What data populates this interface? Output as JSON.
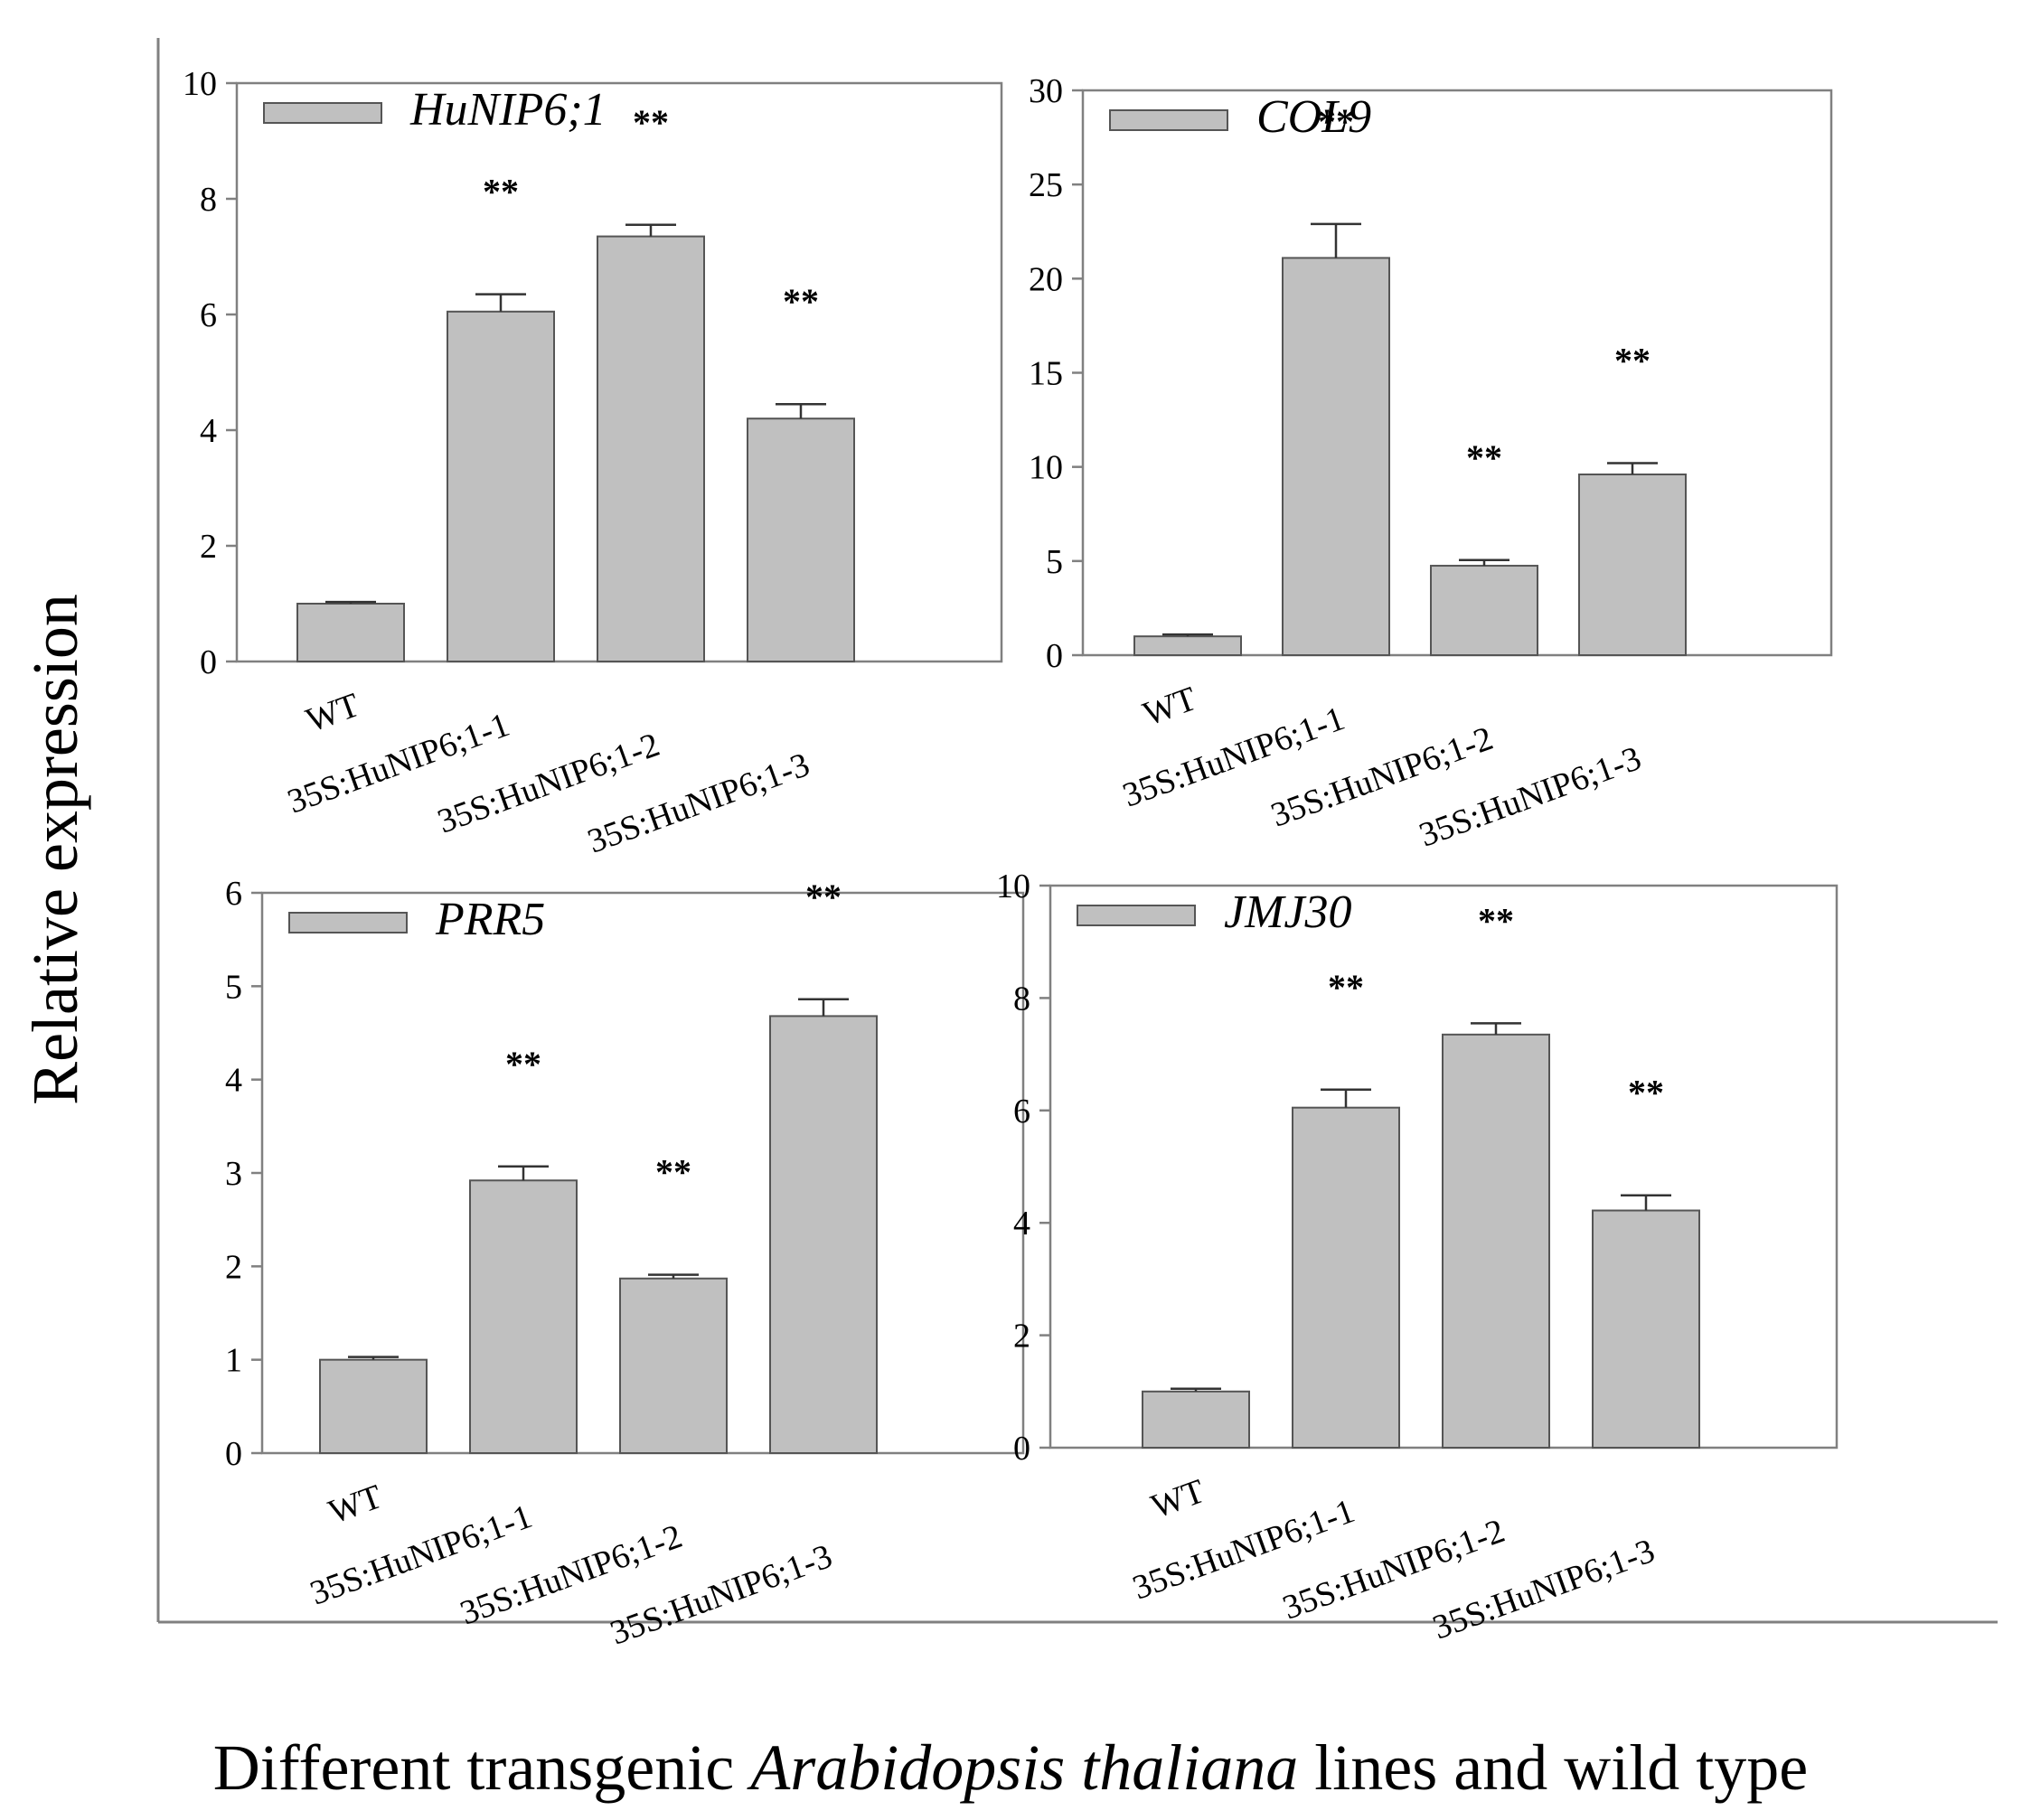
{
  "figure": {
    "ylabel": "Relative expression",
    "xlabel_prefix": "Different transgenic ",
    "xlabel_italic": "Arabidopsis thaliana",
    "xlabel_suffix": " lines and wild type",
    "bar_color": "#c0c0c0",
    "bar_edge_color": "#555555",
    "axis_color": "#808080"
  },
  "chart_data": [
    {
      "type": "bar",
      "title": "HuNIP6;1",
      "legend": "HuNIP6;1",
      "categories": [
        "WT",
        "35S:HuNIP6;1-1",
        "35S:HuNIP6;1-2",
        "35S:HuNIP6;1-3"
      ],
      "values": [
        1.0,
        6.05,
        7.35,
        4.2
      ],
      "errors": [
        0.03,
        0.3,
        0.2,
        0.25
      ],
      "significance": [
        "",
        "**",
        "**",
        "**"
      ],
      "ylim": [
        0,
        10
      ],
      "yticks": [
        0,
        2,
        4,
        6,
        8,
        10
      ]
    },
    {
      "type": "bar",
      "title": "COL9",
      "legend": "COL9",
      "categories": [
        "WT",
        "35S:HuNIP6;1-1",
        "35S:HuNIP6;1-2",
        "35S:HuNIP6;1-3"
      ],
      "values": [
        1.0,
        21.1,
        4.75,
        9.6
      ],
      "errors": [
        0.1,
        1.8,
        0.3,
        0.6
      ],
      "significance": [
        "",
        "**",
        "**",
        "**"
      ],
      "ylim": [
        0,
        30
      ],
      "yticks": [
        0,
        5,
        10,
        15,
        20,
        25,
        30
      ]
    },
    {
      "type": "bar",
      "title": "PRR5",
      "legend": "PRR5",
      "categories": [
        "WT",
        "35S:HuNIP6;1-1",
        "35S:HuNIP6;1-2",
        "35S:HuNIP6;1-3"
      ],
      "values": [
        1.0,
        2.92,
        1.87,
        4.68
      ],
      "errors": [
        0.03,
        0.15,
        0.04,
        0.18
      ],
      "significance": [
        "",
        "**",
        "**",
        "**"
      ],
      "ylim": [
        0,
        6
      ],
      "yticks": [
        0,
        1,
        2,
        3,
        4,
        5,
        6
      ]
    },
    {
      "type": "bar",
      "title": "JMJ30",
      "legend": "JMJ30",
      "categories": [
        "WT",
        "35S:HuNIP6;1-1",
        "35S:HuNIP6;1-2",
        "35S:HuNIP6;1-3"
      ],
      "values": [
        1.0,
        6.05,
        7.35,
        4.22
      ],
      "errors": [
        0.05,
        0.32,
        0.2,
        0.27
      ],
      "significance": [
        "",
        "**",
        "**",
        "**"
      ],
      "ylim": [
        0,
        10
      ],
      "yticks": [
        0,
        2,
        4,
        6,
        8,
        10
      ]
    }
  ]
}
